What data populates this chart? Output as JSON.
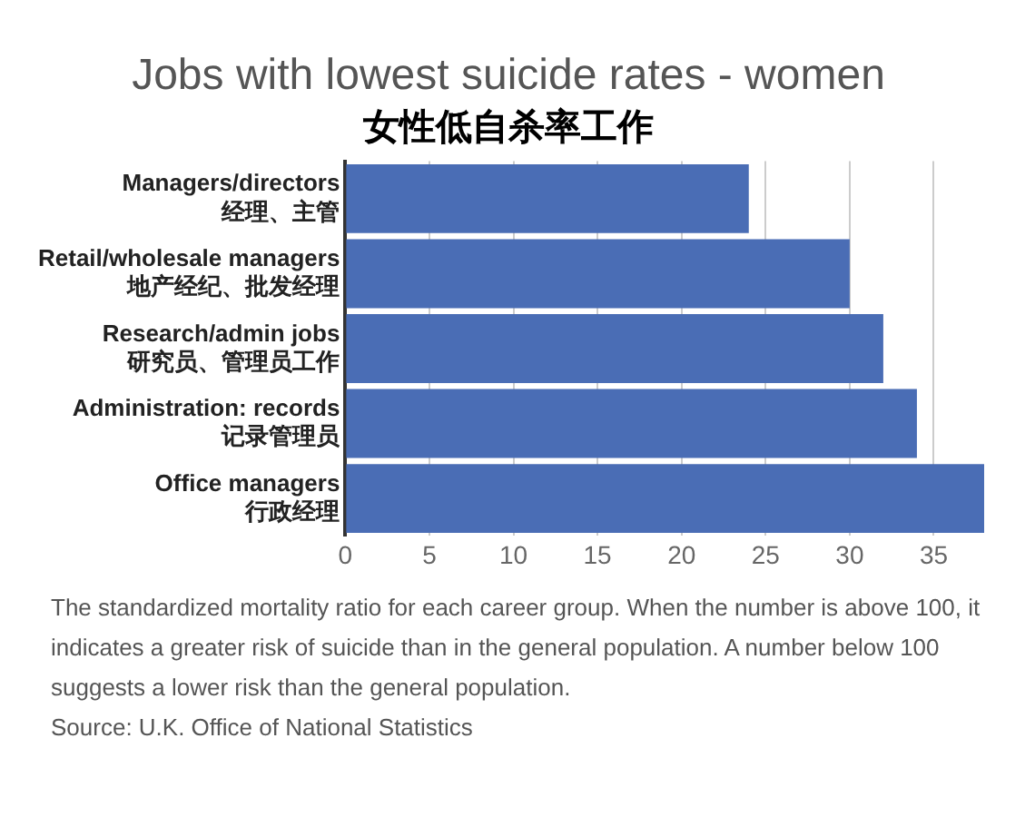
{
  "chart_data": {
    "type": "bar",
    "orientation": "horizontal",
    "title": "Jobs with lowest suicide rates - women",
    "subtitle": "女性低自杀率工作",
    "categories": [
      "Managers/directors\n经理、主管",
      "Retail/wholesale managers\n地产经纪、批发经理",
      "Research/admin jobs\n研究员、管理员工作",
      "Administration: records\n记录管理员",
      "Office managers\n行政经理"
    ],
    "values": [
      24,
      30,
      32,
      34,
      38
    ],
    "color": "#4a6db5",
    "xlim": [
      0,
      38
    ],
    "xticks": [
      0,
      5,
      10,
      15,
      20,
      25,
      30,
      35
    ],
    "grid": "x",
    "legend": false,
    "annotations": [
      "The standardized mortality ratio for each career group. When the number is above 100, it indicates a greater risk of suicide than in the general population. A number below 100 suggests a lower risk than the general population.",
      "Source: U.K. Office of National Statistics"
    ]
  }
}
